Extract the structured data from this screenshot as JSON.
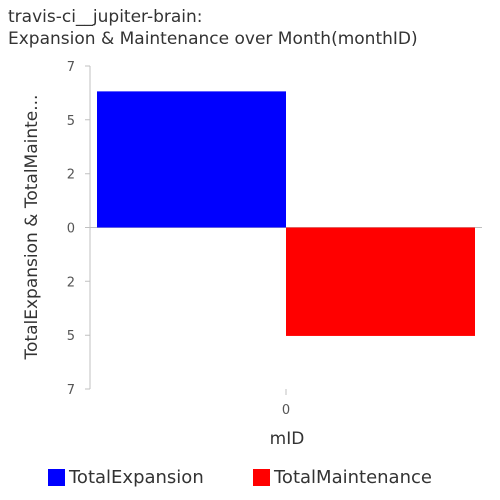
{
  "title": {
    "line1": "travis-ci__jupiter-brain:",
    "line2": "Expansion & Maintenance over Month(monthID)"
  },
  "chart_data": {
    "type": "bar",
    "title": "travis-ci__jupiter-brain: Expansion & Maintenance over Month(monthID)",
    "xlabel": "mID",
    "ylabel": "TotalExpansion & TotalMainte...",
    "categories": [
      "0"
    ],
    "ylim": [
      -7,
      7
    ],
    "y_tick_labels": [
      "7",
      "5",
      "2",
      "0",
      "2",
      "5",
      "7"
    ],
    "y_tick_values": [
      7,
      4.67,
      2.33,
      0,
      -2.33,
      -4.67,
      -7
    ],
    "series": [
      {
        "name": "TotalExpansion",
        "color": "#0000ff",
        "values": [
          5.9
        ]
      },
      {
        "name": "TotalMaintenance",
        "color": "#ff0000",
        "values": [
          -4.7
        ]
      }
    ],
    "grid": false,
    "legend_position": "bottom"
  }
}
